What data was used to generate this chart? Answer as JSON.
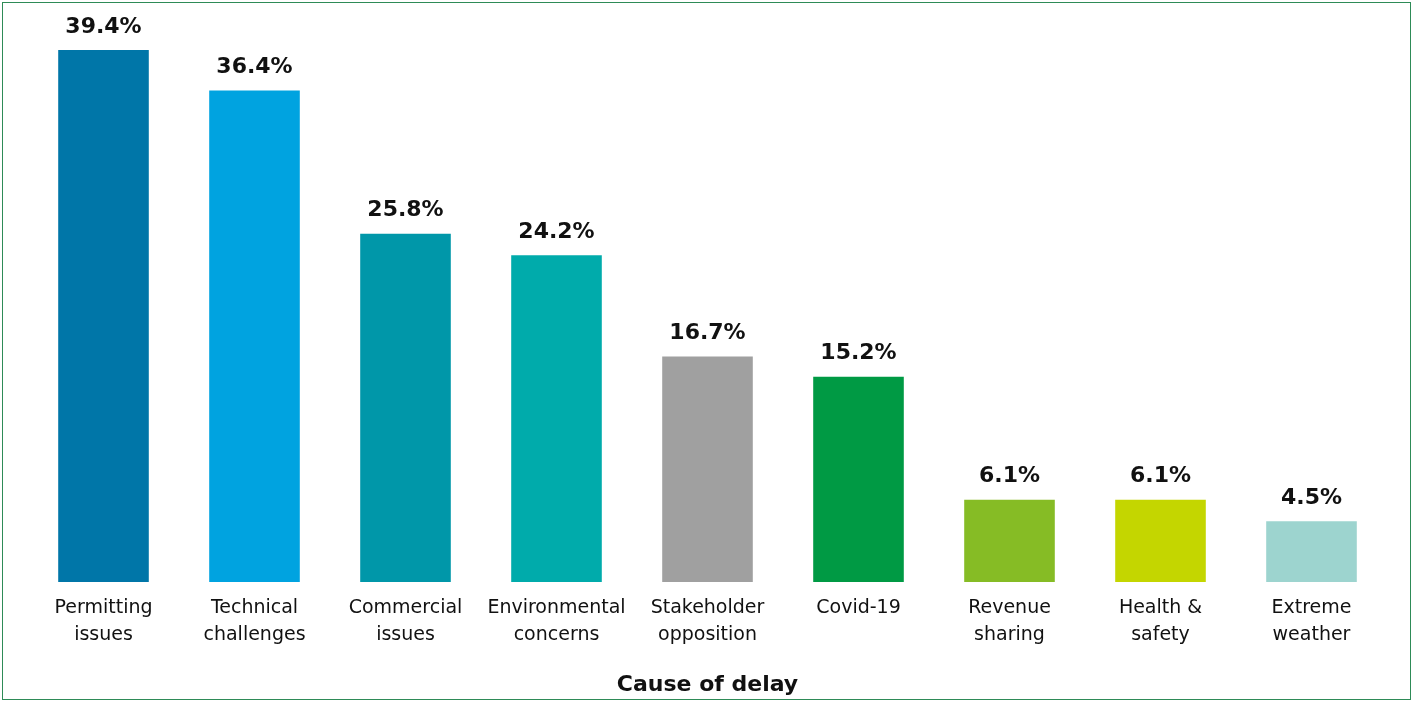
{
  "chart_data": {
    "type": "bar",
    "xlabel": "Cause of delay",
    "categories": [
      "Permitting issues",
      "Technical challenges",
      "Commercial issues",
      "Environmental concerns",
      "Stakeholder opposition",
      "Covid-19",
      "Revenue sharing",
      "Health & safety",
      "Extreme weather"
    ],
    "values": [
      39.4,
      36.4,
      25.8,
      24.2,
      16.7,
      15.2,
      6.1,
      6.1,
      4.5
    ],
    "value_labels": [
      "39.4%",
      "36.4%",
      "25.8%",
      "24.2%",
      "16.7%",
      "15.2%",
      "6.1%",
      "6.1%",
      "4.5%"
    ],
    "colors": [
      "#0076a8",
      "#00a3e0",
      "#0097a9",
      "#00abab",
      "#a0a0a0",
      "#009a44",
      "#86bc25",
      "#c4d600",
      "#9dd4cf"
    ]
  }
}
